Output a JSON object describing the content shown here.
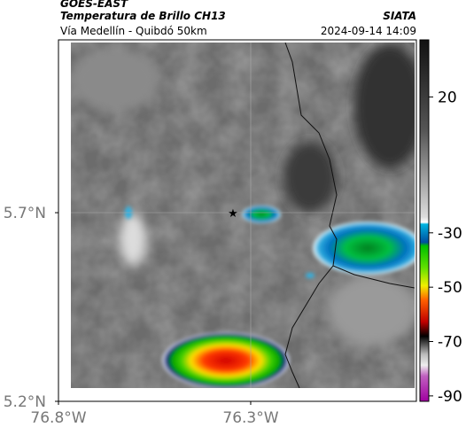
{
  "header": {
    "satellite": "GOES-EAST",
    "title": "Temperatura de Brillo CH13",
    "org": "SIATA",
    "subtitle": "Vía Medellín - Quibdó 50km",
    "datetime": "2024-09-14 14:09"
  },
  "map": {
    "lonlim": [
      -76.8,
      -75.869
    ],
    "latlim": [
      5.2,
      6.158
    ],
    "lonticks": [
      {
        "value": -76.8,
        "label": "76.8°W"
      },
      {
        "value": -76.3,
        "label": "76.3°W"
      }
    ],
    "latticks": [
      {
        "value": 5.2,
        "label": "5.2°N"
      },
      {
        "value": 5.7,
        "label": "5.7°N"
      }
    ],
    "colorbar": {
      "lim": [
        41,
        -92
      ],
      "ticks": [
        20,
        -30,
        -50,
        -70,
        -90
      ]
    }
  }
}
